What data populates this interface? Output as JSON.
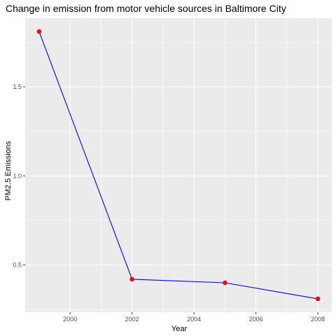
{
  "chart_data": {
    "type": "line",
    "title": "Change in emission from motor vehicle sources in Baltimore City",
    "xlabel": "Year",
    "ylabel": "PM2.5 Emissions",
    "x": [
      1999,
      2002,
      2005,
      2008
    ],
    "series": [
      {
        "values": [
          1.81,
          0.42,
          0.4,
          0.31
        ]
      }
    ],
    "xlim": [
      1998.55,
      2008.45
    ],
    "ylim": [
      0.235,
      1.885
    ],
    "xticks": [
      2000,
      2002,
      2004,
      2006,
      2008
    ],
    "yticks": [
      0.5,
      1.0,
      1.5
    ],
    "xtick_labels": [
      "2000",
      "2002",
      "2004",
      "2006",
      "2008"
    ],
    "ytick_labels": [
      "0.5",
      "1.0",
      "1.5"
    ],
    "grid": true,
    "legend": "none",
    "colors": {
      "panel": "#ebebeb",
      "grid_major": "#ffffff",
      "line": "#0000ff",
      "point": "#ff0000",
      "tick_text": "#4d4d4d"
    }
  }
}
